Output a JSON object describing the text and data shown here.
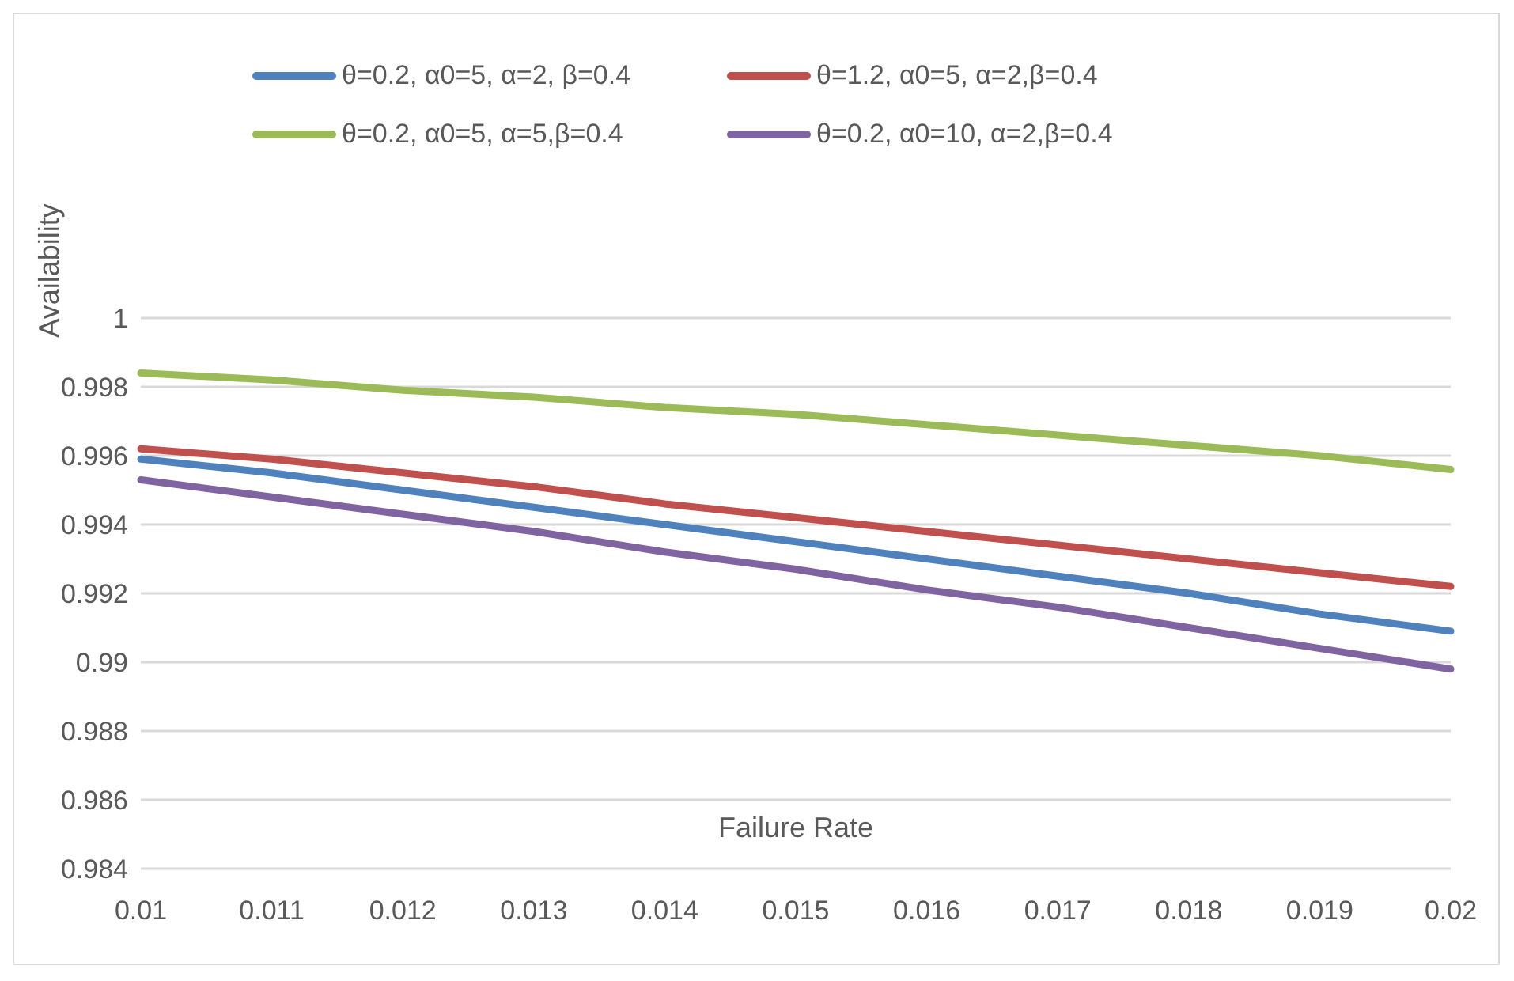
{
  "chart_data": {
    "type": "line",
    "xlabel": "Failure Rate",
    "ylabel": "Availability",
    "categories": [
      "0.01",
      "0.011",
      "0.012",
      "0.013",
      "0.014",
      "0.015",
      "0.016",
      "0.017",
      "0.018",
      "0.019",
      "0.02"
    ],
    "series": [
      {
        "name": "θ=0.2, α0=5, α=2, β=0.4",
        "color": "#4f81bd",
        "values": [
          0.9959,
          0.9955,
          0.995,
          0.9945,
          0.994,
          0.9935,
          0.993,
          0.9925,
          0.992,
          0.9914,
          0.9909
        ]
      },
      {
        "name": "θ=1.2, α0=5, α=2,β=0.4",
        "color": "#c0504d",
        "values": [
          0.9962,
          0.9959,
          0.9955,
          0.9951,
          0.9946,
          0.9942,
          0.9938,
          0.9934,
          0.993,
          0.9926,
          0.9922
        ]
      },
      {
        "name": "θ=0.2, α0=5, α=5,β=0.4",
        "color": "#9bbb59",
        "values": [
          0.9984,
          0.9982,
          0.9979,
          0.9977,
          0.9974,
          0.9972,
          0.9969,
          0.9966,
          0.9963,
          0.996,
          0.9956
        ]
      },
      {
        "name": "θ=0.2, α0=10, α=2,β=0.4",
        "color": "#8064a2",
        "values": [
          0.9953,
          0.9948,
          0.9943,
          0.9938,
          0.9932,
          0.9927,
          0.9921,
          0.9916,
          0.991,
          0.9904,
          0.9898
        ]
      }
    ],
    "ylim": [
      0.984,
      1
    ],
    "yticks": [
      0.984,
      0.986,
      0.988,
      0.99,
      0.992,
      0.994,
      0.996,
      0.998,
      1
    ],
    "grid": "y",
    "legend": "top",
    "marker": "none",
    "line_style": "solid"
  }
}
